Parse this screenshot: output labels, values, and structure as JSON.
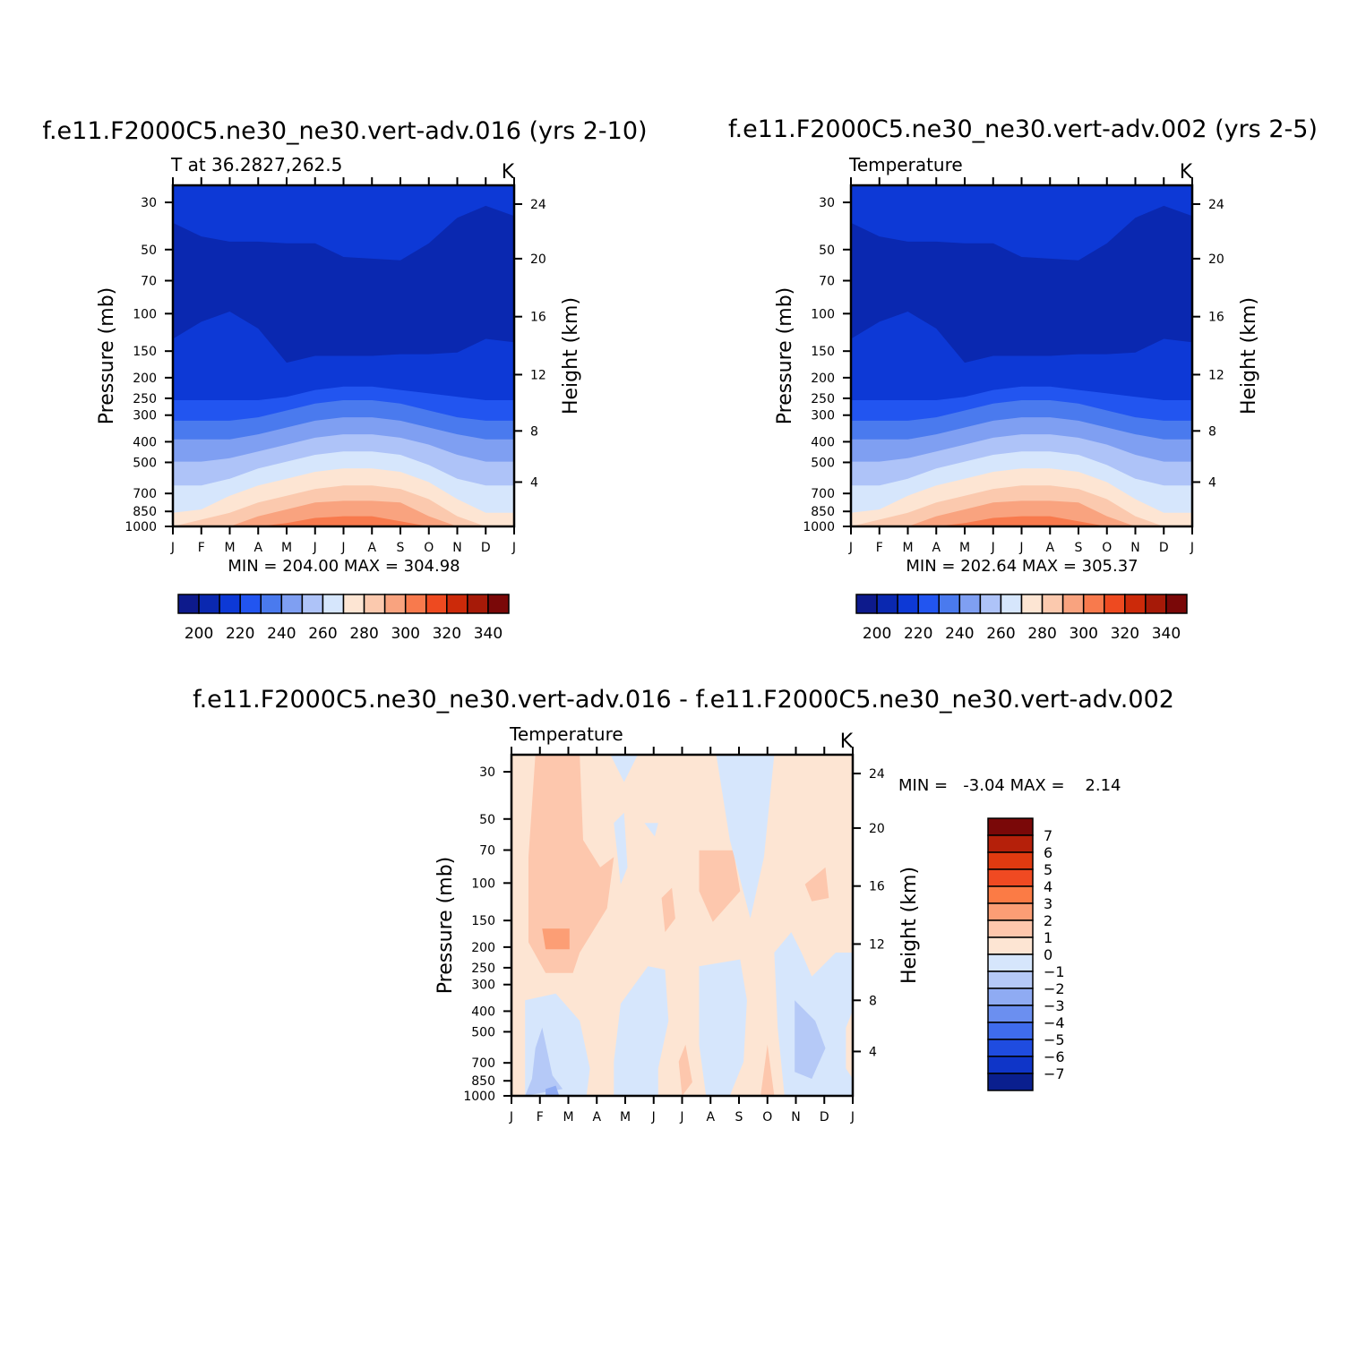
{
  "months": [
    "J",
    "F",
    "M",
    "A",
    "M",
    "J",
    "J",
    "A",
    "S",
    "O",
    "N",
    "D",
    "J"
  ],
  "pressure_ticks": [
    "30",
    "50",
    "70",
    "100",
    "150",
    "200",
    "250",
    "300",
    "400",
    "500",
    "700",
    "850",
    "1000"
  ],
  "height_ticks": [
    "24",
    "20",
    "16",
    "12",
    "8",
    "4"
  ],
  "chart_data": [
    {
      "type": "heatmap",
      "title": "f.e11.F2000C5.ne30_ne30.vert-adv.016 (yrs 2-10)",
      "left_label": "T at 36.2827,262.5",
      "units": "K",
      "ylabel": "Pressure (mb)",
      "y2label": "Height (km)",
      "stats": "MIN = 204.00 MAX = 304.98",
      "colorbar": {
        "labels": [
          "200",
          "220",
          "240",
          "260",
          "280",
          "300",
          "320",
          "340"
        ]
      }
    },
    {
      "type": "heatmap",
      "title": "f.e11.F2000C5.ne30_ne30.vert-adv.002 (yrs 2-5)",
      "left_label": "Temperature",
      "units": "K",
      "ylabel": "Pressure (mb)",
      "y2label": "Height (km)",
      "stats": "MIN = 202.64 MAX = 305.37",
      "colorbar": {
        "labels": [
          "200",
          "220",
          "240",
          "260",
          "280",
          "300",
          "320",
          "340"
        ]
      }
    },
    {
      "type": "heatmap",
      "title": "f.e11.F2000C5.ne30_ne30.vert-adv.016 - f.e11.F2000C5.ne30_ne30.vert-adv.002",
      "left_label": "Temperature",
      "units": "K",
      "ylabel": "Pressure (mb)",
      "y2label": "Height (km)",
      "stats": "MIN =   -3.04 MAX =    2.14",
      "colorbar": {
        "labels": [
          "7",
          "6",
          "5",
          "4",
          "3",
          "2",
          "1",
          "0",
          "-1",
          "-2",
          "-3",
          "-4",
          "-5",
          "-6",
          "-7"
        ]
      }
    }
  ],
  "colors": {
    "abs_scale": [
      "#0d1a8c",
      "#0a28b0",
      "#0d39d6",
      "#2255f0",
      "#4a7aee",
      "#7f9ff2",
      "#aec3f8",
      "#d6e6fc",
      "#fde5d3",
      "#fbc9ae",
      "#f9a37f",
      "#f87a4d",
      "#ee4a20",
      "#cc2a0a",
      "#a61a08",
      "#7a0808"
    ],
    "diff_scale": [
      "#7a0808",
      "#b5200a",
      "#e03a10",
      "#f04a22",
      "#fb7b45",
      "#fc9e75",
      "#fdc7ad",
      "#fde5d3",
      "#d6e6fc",
      "#b5c9f7",
      "#8fabf3",
      "#6b8ff0",
      "#3f6cee",
      "#1f4ce0",
      "#0f35c8",
      "#0a1f8e"
    ]
  }
}
